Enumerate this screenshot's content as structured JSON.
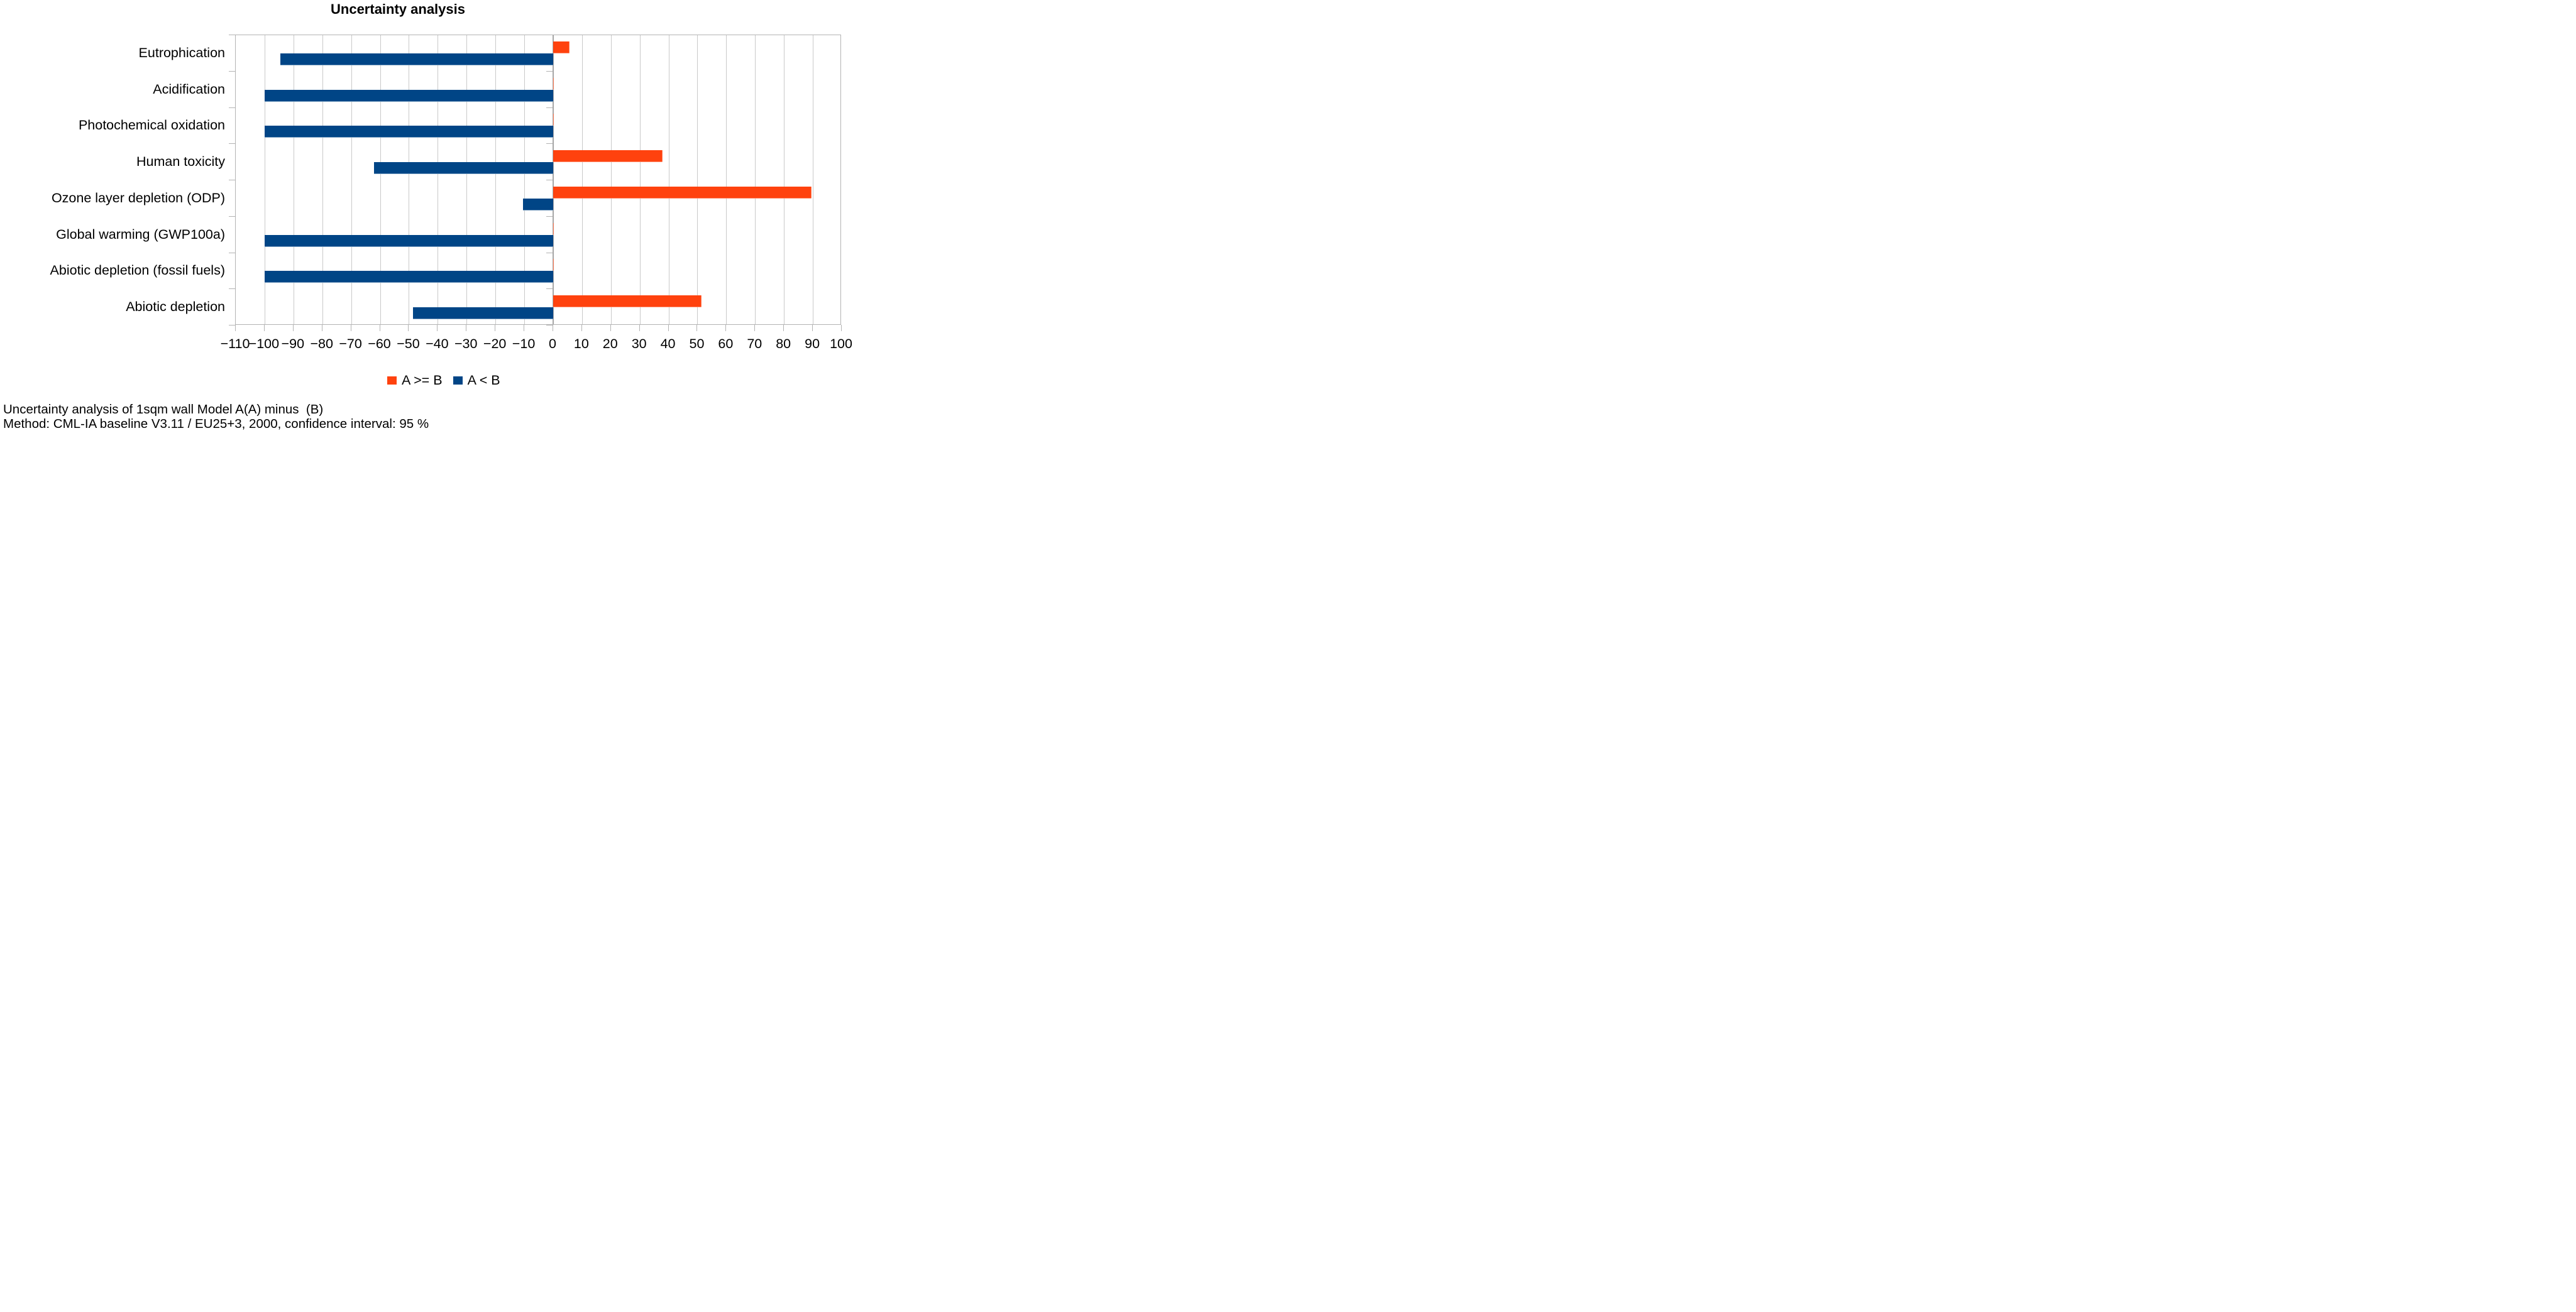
{
  "chart_data": {
    "type": "bar",
    "orientation": "horizontal",
    "title": "Uncertainty analysis",
    "categories": [
      "Eutrophication",
      "Acidification",
      "Photochemical oxidation",
      "Human toxicity",
      "Ozone layer depletion (ODP)",
      "Global warming (GWP100a)",
      "Abiotic depletion (fossil fuels)",
      "Abiotic depletion"
    ],
    "series": [
      {
        "name": "A >= B",
        "color": "#FF420E",
        "values": [
          5.7,
          0.3,
          0.3,
          38,
          89.5,
          0.3,
          0.3,
          51.5
        ]
      },
      {
        "name": "A < B",
        "color": "#004586",
        "values": [
          -94.5,
          -100,
          -100,
          -62,
          -10.5,
          -100,
          -100,
          -48.5
        ]
      }
    ],
    "xlabel": "",
    "ylabel": "",
    "xlim": [
      -110,
      100
    ],
    "x_tick_step": 10,
    "x_tick_labels": [
      "−110",
      "−100",
      "−90",
      "−80",
      "−70",
      "−60",
      "−50",
      "−40",
      "−30",
      "−20",
      "−10",
      "0",
      "10",
      "20",
      "30",
      "40",
      "50",
      "60",
      "70",
      "80",
      "90",
      "100"
    ],
    "grid": "vertical",
    "legend_position": "bottom",
    "unit": "%"
  },
  "footer": {
    "lines": [
      "Uncertainty analysis of 1sqm wall Model A(A) minus  (B)",
      "Method: CML-IA baseline V3.11 / EU25+3, 2000, confidence interval: 95 %"
    ]
  },
  "colors": {
    "series_a_ge_b": "#FF420E",
    "series_a_lt_b": "#004586",
    "gridline": "#c9c9c9",
    "plot_border": "#b3b3b3",
    "background": "#ffffff"
  }
}
